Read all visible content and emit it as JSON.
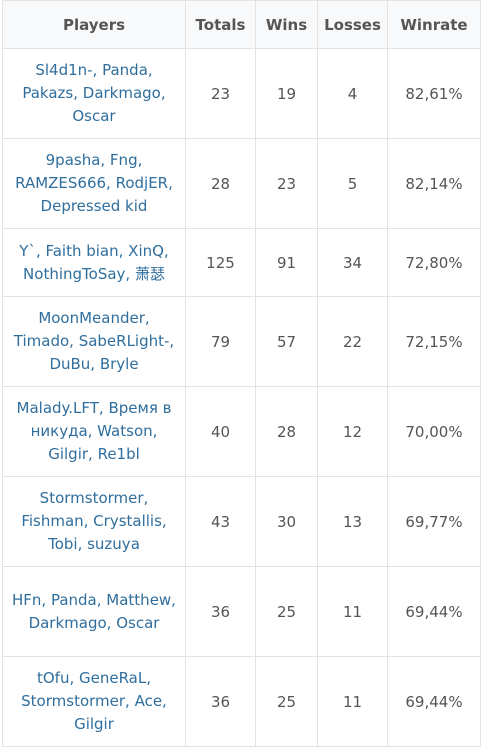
{
  "headers": {
    "players": "Players",
    "totals": "Totals",
    "wins": "Wins",
    "losses": "Losses",
    "winrate": "Winrate"
  },
  "rows": [
    {
      "players": "Sl4d1n-, Panda, Pakazs, Darkmago, Oscar",
      "totals": "23",
      "wins": "19",
      "losses": "4",
      "winrate": "82,61%"
    },
    {
      "players": "9pasha, Fng, RAMZES666, RodjER, Depressed kid",
      "totals": "28",
      "wins": "23",
      "losses": "5",
      "winrate": "82,14%"
    },
    {
      "players": "Y`, Faith bian, XinQ, NothingToSay, 萧瑟",
      "totals": "125",
      "wins": "91",
      "losses": "34",
      "winrate": "72,80%"
    },
    {
      "players": "MoonMeander, Timado, SabeRLight-, DuBu, Bryle",
      "totals": "79",
      "wins": "57",
      "losses": "22",
      "winrate": "72,15%"
    },
    {
      "players": "Malady.LFT, Время в никуда, Watson, Gilgir, Re1bl",
      "totals": "40",
      "wins": "28",
      "losses": "12",
      "winrate": "70,00%"
    },
    {
      "players": "Stormstormer, Fishman, Crystallis, Tobi, suzuya",
      "totals": "43",
      "wins": "30",
      "losses": "13",
      "winrate": "69,77%"
    },
    {
      "players": "HFn, Panda, Matthew, Darkmago, Oscar",
      "totals": "36",
      "wins": "25",
      "losses": "11",
      "winrate": "69,44%"
    },
    {
      "players": "tOfu, GeneRaL, Stormstormer, Ace, Gilgir",
      "totals": "36",
      "wins": "25",
      "losses": "11",
      "winrate": "69,44%"
    }
  ]
}
